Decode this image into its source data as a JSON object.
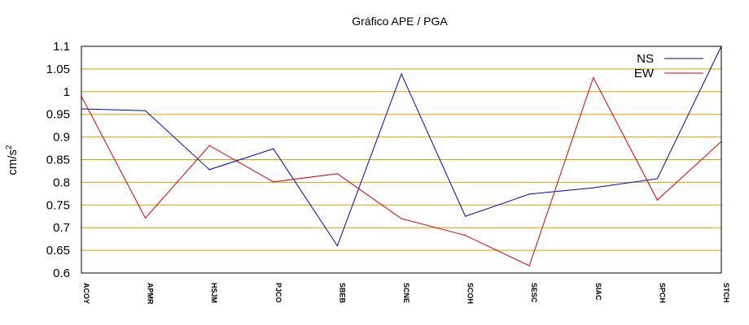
{
  "chart_data": {
    "type": "line",
    "title": "Gráfico  APE / PGA",
    "ylabel": "cm/s",
    "ylabel_superscript": "2",
    "xlabel": "",
    "categories": [
      "ACOY",
      "APMR",
      "HSJM",
      "PJCO",
      "SBEB",
      "SCNE",
      "SCOH",
      "SESC",
      "SIAC",
      "SPCH",
      "STCH"
    ],
    "ylim": [
      0.6,
      1.1
    ],
    "yticks": [
      "0.6",
      "0.65",
      "0.7",
      "0.75",
      "0.8",
      "0.85",
      "0.9",
      "0.95",
      "1",
      "1.05",
      "1.1"
    ],
    "grid": "horizontal",
    "legend_position": "top-right",
    "series": [
      {
        "name": "NS",
        "color": "#0000cc",
        "values": [
          0.962,
          0.958,
          0.828,
          0.874,
          0.66,
          1.039,
          0.725,
          0.774,
          0.788,
          0.808,
          1.1
        ]
      },
      {
        "name": "EW",
        "color": "#e00000",
        "values": [
          0.99,
          0.721,
          0.881,
          0.801,
          0.819,
          0.72,
          0.683,
          0.616,
          1.031,
          0.761,
          0.89
        ]
      }
    ],
    "gridline_color": "#d9a000",
    "frame_color": "#000000"
  }
}
